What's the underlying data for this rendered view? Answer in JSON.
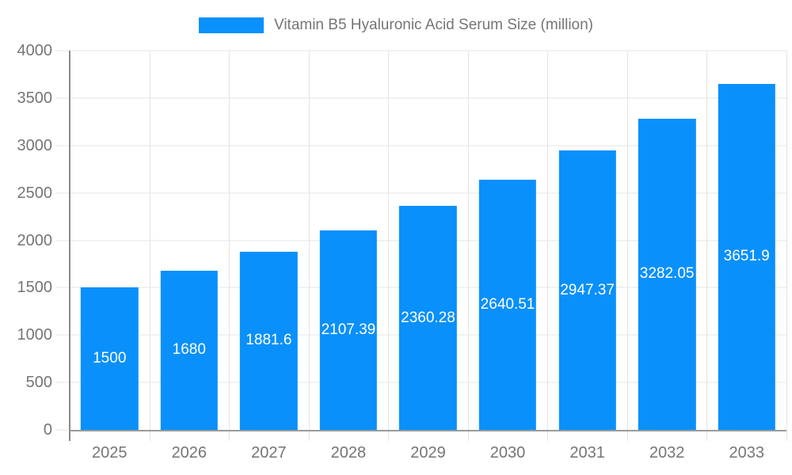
{
  "chart_data": {
    "type": "bar",
    "title": "Vitamin B5 Hyaluronic Acid Serum Size (million)",
    "legend": [
      "Vitamin B5 Hyaluronic Acid Serum Size (million)"
    ],
    "legend_position": "top",
    "categories": [
      "2025",
      "2026",
      "2027",
      "2028",
      "2029",
      "2030",
      "2031",
      "2032",
      "2033"
    ],
    "series": [
      {
        "name": "Vitamin B5 Hyaluronic Acid Serum Size (million)",
        "values": [
          1500,
          1680,
          1881.6,
          2107.39,
          2360.28,
          2640.51,
          2947.37,
          3282.05,
          3651.9
        ]
      }
    ],
    "bar_labels": [
      "1500",
      "1680",
      "1881.6",
      "2107.39",
      "2360.28",
      "2640.51",
      "2947.37",
      "3282.05",
      "3651.9"
    ],
    "xlabel": "",
    "ylabel": "",
    "ylim": [
      0,
      4000
    ],
    "yticks": [
      0,
      500,
      1000,
      1500,
      2000,
      2500,
      3000,
      3500,
      4000
    ],
    "grid": true,
    "colors": {
      "bar": "#0a90fa",
      "grid": "#e4e4e4",
      "axis": "#9a9a9a",
      "y_axis": "#8a8a8a",
      "tick_label": "#757575",
      "bar_label": "#ffffff",
      "title": "#757575"
    }
  }
}
